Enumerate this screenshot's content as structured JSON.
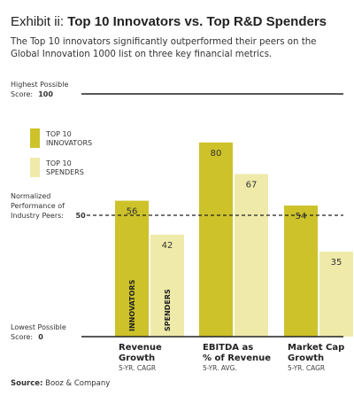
{
  "header": {
    "lead": "Exhibit ii:",
    "title": "Top 10 Innovators vs. Top R&D Spenders",
    "subtitle": "The Top 10 innovators significantly outperformed their peers on the Global Innovation 1000 list on three key financial metrics."
  },
  "source": {
    "label": "Source:",
    "text": "Booz & Company"
  },
  "colors": {
    "innovators": "#cdc22a",
    "spenders": "#efeaa9",
    "rule": "#222222"
  },
  "chart_data": {
    "type": "bar",
    "ylim": [
      0,
      100
    ],
    "grid": false,
    "y_annotations": [
      {
        "value": 100,
        "lines": [
          "Highest Possible",
          "Score:"
        ],
        "num": "100"
      },
      {
        "value": 50,
        "lines": [
          "Normalized",
          "Performance of",
          "Industry Peers:"
        ],
        "num": "50"
      },
      {
        "value": 0,
        "lines": [
          "Lowest Possible",
          "Score:"
        ],
        "num": "0"
      }
    ],
    "legend": [
      {
        "lines": [
          "TOP 10",
          "INNOVATORS"
        ],
        "color": "#cdc22a"
      },
      {
        "lines": [
          "TOP 10",
          "SPENDERS"
        ],
        "color": "#efeaa9"
      }
    ],
    "legend_position": "left",
    "categories": [
      {
        "title": [
          "Revenue",
          "Growth"
        ],
        "sub": "5-YR. CAGR"
      },
      {
        "title": [
          "EBITDA as",
          "% of Revenue"
        ],
        "sub": "5-YR. AVG."
      },
      {
        "title": [
          "Market Cap",
          "Growth"
        ],
        "sub": "5-YR. CAGR"
      }
    ],
    "series": [
      {
        "name": "INNOVATORS",
        "values": [
          56,
          80,
          54
        ],
        "bar_text": "INNOVATORS"
      },
      {
        "name": "SPENDERS",
        "values": [
          42,
          67,
          35
        ],
        "bar_text": "SPENDERS"
      }
    ]
  }
}
